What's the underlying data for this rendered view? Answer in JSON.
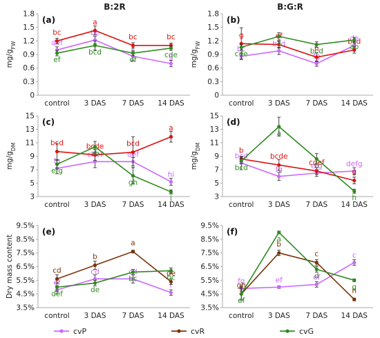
{
  "colors": {
    "cvP": "#cc66ff",
    "cvR": "#dd1111",
    "cvG": "#2e8b1e",
    "cvR_dm": "#7b3006",
    "axis": "#bbbbbb",
    "text": "#222222"
  },
  "column_titles": [
    "B:2R",
    "B:G:R"
  ],
  "legend": [
    {
      "name": "cvP",
      "color": "#cc66ff"
    },
    {
      "name": "cvR",
      "color": "#7b3006"
    },
    {
      "name": "cvG",
      "color": "#2e8b1e"
    }
  ],
  "chart_data": [
    {
      "id": "a",
      "panel_label": "(a)",
      "type": "line",
      "title": "B:2R",
      "categories": [
        "control",
        "3 DAS",
        "7 DAS",
        "14 DAS"
      ],
      "ylabel": "mg/g",
      "ylabel_sub": "FW",
      "yticks": [
        "0",
        "0.3",
        "0.6",
        "0.9",
        "1.2",
        "1.5",
        "1.8"
      ],
      "ylim": [
        0,
        1.8
      ],
      "series": [
        {
          "name": "cvP",
          "values": [
            1.0,
            1.22,
            0.86,
            0.7
          ],
          "err": [
            0.07,
            0.08,
            0.1,
            0.07
          ],
          "labels": [
            "def",
            "bc",
            "f",
            "g"
          ]
        },
        {
          "name": "cvR",
          "values": [
            1.2,
            1.43,
            1.1,
            1.1
          ],
          "err": [
            0.06,
            0.1,
            0.06,
            0.05
          ],
          "labels": [
            "bc",
            "a",
            "bc",
            "bc"
          ]
        },
        {
          "name": "cvG",
          "values": [
            0.93,
            1.1,
            0.93,
            1.04
          ],
          "err": [
            0.06,
            0.1,
            0.06,
            0.05
          ],
          "labels": [
            "ef",
            "bcd",
            "ef",
            "cde"
          ]
        }
      ]
    },
    {
      "id": "b",
      "panel_label": "(b)",
      "type": "line",
      "title": "B:G:R",
      "categories": [
        "control",
        "3 DAS",
        "7 DAS",
        "14 DAS"
      ],
      "ylabel": "mg/g",
      "ylabel_sub": "FW",
      "yticks": [
        "0",
        "0.3",
        "0.6",
        "0.9",
        "1.2",
        "1.5",
        "1.8"
      ],
      "ylim": [
        0,
        1.8
      ],
      "series": [
        {
          "name": "cvP",
          "values": [
            0.86,
            0.98,
            0.7,
            1.1
          ],
          "err": [
            0.06,
            0.08,
            0.06,
            0.08
          ],
          "labels": [
            "bc",
            "bcd",
            "fg",
            "de"
          ]
        },
        {
          "name": "cvR",
          "values": [
            1.14,
            1.12,
            0.84,
            1.0
          ],
          "err": [
            0.35,
            0.08,
            0.1,
            0.07
          ],
          "labels": [
            "g",
            "ef",
            "h",
            "bcd"
          ]
        },
        {
          "name": "cvG",
          "values": [
            1.06,
            1.3,
            1.12,
            1.22
          ],
          "err": [
            0.06,
            0.08,
            0.06,
            0.06
          ],
          "labels": [
            "cde",
            "a",
            "bcd",
            "ab"
          ]
        }
      ]
    },
    {
      "id": "c",
      "panel_label": "(c)",
      "type": "line",
      "categories": [
        "control",
        "3 DAS",
        "7 DAS",
        "14 DAS"
      ],
      "ylabel": "mg/g",
      "ylabel_sub": "DM",
      "yticks": [
        "3",
        "5",
        "7",
        "9",
        "11",
        "13",
        "15"
      ],
      "ylim": [
        3,
        15
      ],
      "series": [
        {
          "name": "cvP",
          "values": [
            7.2,
            8.2,
            8.2,
            5.2
          ],
          "err": [
            0.8,
            0.9,
            0.6,
            0.5
          ],
          "labels": [
            "fg",
            "cdef",
            "def",
            "hi"
          ]
        },
        {
          "name": "cvR",
          "values": [
            9.7,
            9.2,
            9.6,
            11.9
          ],
          "err": [
            1.2,
            0.8,
            2.3,
            0.8
          ],
          "labels": [
            "bcd",
            "bcde",
            "bcd",
            "a"
          ]
        },
        {
          "name": "cvG",
          "values": [
            7.8,
            10.4,
            6.1,
            3.7
          ],
          "err": [
            0.6,
            0.8,
            1.2,
            0.3
          ],
          "labels": [
            "efg",
            "ab",
            "gh",
            "i"
          ]
        }
      ]
    },
    {
      "id": "d",
      "panel_label": "(d)",
      "type": "line",
      "categories": [
        "control",
        "3 DAS",
        "7 DAS",
        "14 DAS"
      ],
      "ylabel": "mg/g",
      "ylabel_sub": "DM",
      "yticks": [
        "3",
        "5",
        "7",
        "9",
        "11",
        "13",
        "15"
      ],
      "ylim": [
        3,
        15
      ],
      "series": [
        {
          "name": "cvP",
          "values": [
            8.0,
            6.0,
            6.5,
            6.8
          ],
          "err": [
            1.0,
            0.6,
            0.5,
            0.5
          ],
          "labels": [
            "bcd",
            "fg",
            "efg",
            "defg"
          ]
        },
        {
          "name": "cvR",
          "values": [
            8.6,
            7.7,
            6.8,
            5.4
          ],
          "err": [
            0.3,
            0.8,
            0.5,
            0.5
          ],
          "labels": [
            "b",
            "bcde",
            "cdef",
            "g"
          ]
        },
        {
          "name": "cvG",
          "values": [
            8.3,
            13.4,
            8.6,
            3.8
          ],
          "err": [
            0.4,
            1.4,
            0.8,
            0.3
          ],
          "labels": [
            "bcd",
            "a",
            "b",
            "h"
          ]
        }
      ]
    },
    {
      "id": "e",
      "panel_label": "(e)",
      "type": "line",
      "categories": [
        "control",
        "3 DAS",
        "7 DAS",
        "14 DAS"
      ],
      "ylabel": "Dry mass content",
      "yticks": [
        "3.5%",
        "4.5%",
        "5.5%",
        "6.5%",
        "7.5%",
        "8.5%",
        "9.5%"
      ],
      "ylim": [
        3.5,
        9.5
      ],
      "series": [
        {
          "name": "cvP",
          "values": [
            4.8,
            5.6,
            5.6,
            4.6
          ],
          "err": [
            0.3,
            0.3,
            0.3,
            0.2
          ],
          "labels": [
            "ef",
            "cd",
            "cd",
            "f"
          ]
        },
        {
          "name": "cvR",
          "values": [
            5.6,
            6.6,
            7.6,
            5.4
          ],
          "err": [
            0.3,
            0.3,
            0.1,
            0.2
          ],
          "labels": [
            "cd",
            "b",
            "a",
            "de"
          ]
        },
        {
          "name": "cvG",
          "values": [
            5.0,
            5.3,
            6.1,
            6.2
          ],
          "err": [
            0.3,
            0.2,
            0.2,
            0.2
          ],
          "labels": [
            "def",
            "de",
            "bc",
            "bc"
          ]
        }
      ]
    },
    {
      "id": "f",
      "panel_label": "(f)",
      "type": "line",
      "categories": [
        "control",
        "3 DAS",
        "7 DAS",
        "14 DAS"
      ],
      "yticks": [
        "3.5%",
        "4.5%",
        "5.5%",
        "6.5%",
        "7.5%",
        "8.5%",
        "9.5%"
      ],
      "ylim": [
        3.5,
        9.5
      ],
      "series": [
        {
          "name": "cvP",
          "values": [
            4.9,
            5.0,
            5.2,
            6.8
          ],
          "err": [
            0.2,
            0.1,
            0.2,
            0.2
          ],
          "labels": [
            "fg",
            "ef",
            "ef",
            "c"
          ]
        },
        {
          "name": "cvR",
          "values": [
            4.5,
            7.5,
            6.8,
            4.1
          ],
          "err": [
            0.5,
            0.2,
            0.2,
            0.1
          ],
          "labels": [
            "gh",
            "b",
            "c",
            "h"
          ]
        },
        {
          "name": "cvG",
          "values": [
            4.5,
            9.0,
            6.3,
            5.5
          ],
          "err": [
            0.4,
            0.1,
            0.2,
            0.1
          ],
          "labels": [
            "ef",
            "a",
            "d",
            "g"
          ]
        }
      ]
    }
  ]
}
